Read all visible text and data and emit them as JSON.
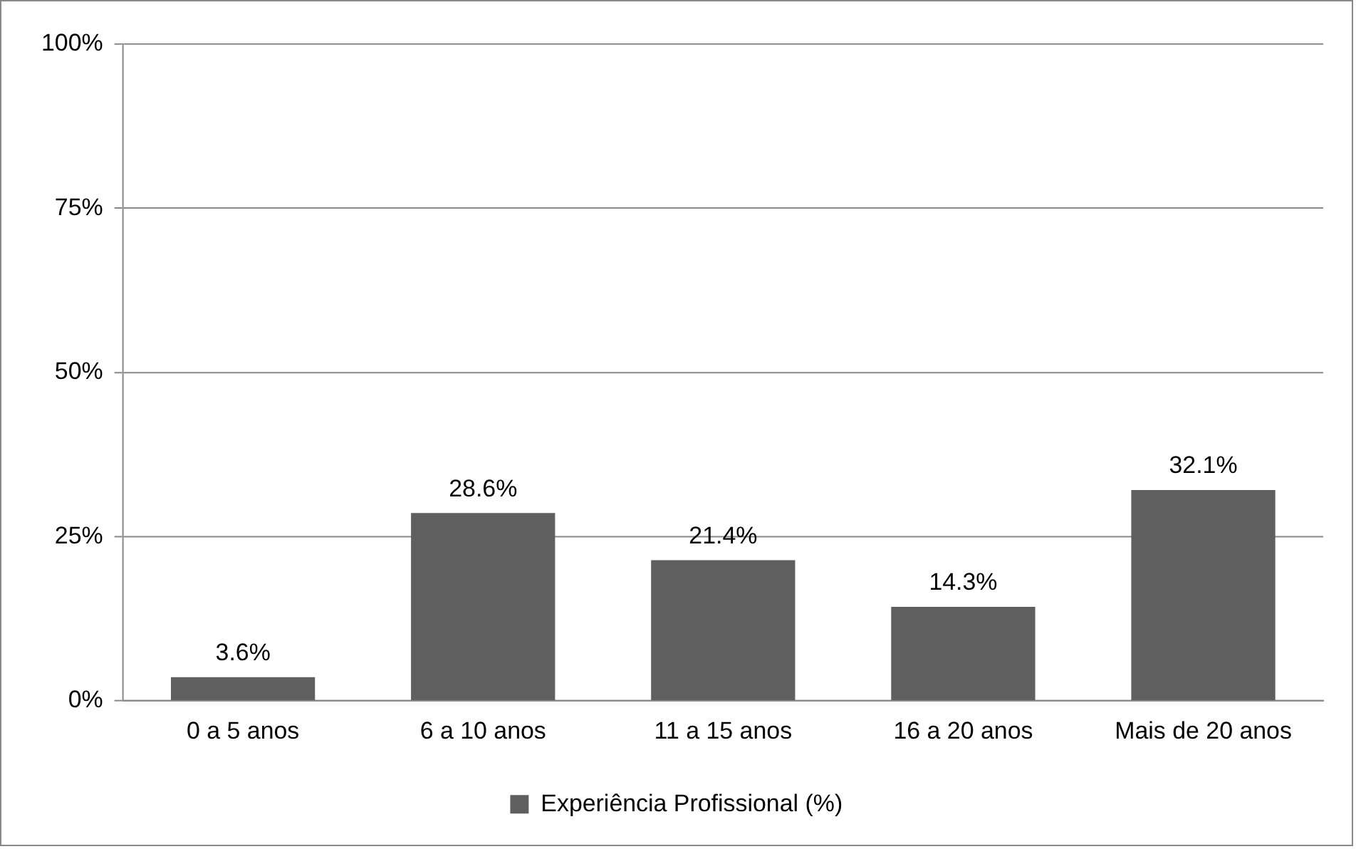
{
  "chart_data": {
    "type": "bar",
    "categories": [
      "0 a 5 anos",
      "6 a 10 anos",
      "11 a 15 anos",
      "16 a 20 anos",
      "Mais de 20 anos"
    ],
    "series": [
      {
        "name": "Experiência Profissional (%)",
        "color": "#5f5f5f",
        "values": [
          3.6,
          28.6,
          21.4,
          14.3,
          32.1
        ],
        "value_labels": [
          "3.6%",
          "28.6%",
          "21.4%",
          "14.3%",
          "32.1%"
        ]
      }
    ],
    "ylim": [
      0,
      100
    ],
    "yticks": [
      {
        "value": 0,
        "label": "0%"
      },
      {
        "value": 25,
        "label": "25%"
      },
      {
        "value": 50,
        "label": "50%"
      },
      {
        "value": 75,
        "label": "75%"
      },
      {
        "value": 100,
        "label": "100%"
      }
    ],
    "grid": "y",
    "legend": "bottom"
  }
}
